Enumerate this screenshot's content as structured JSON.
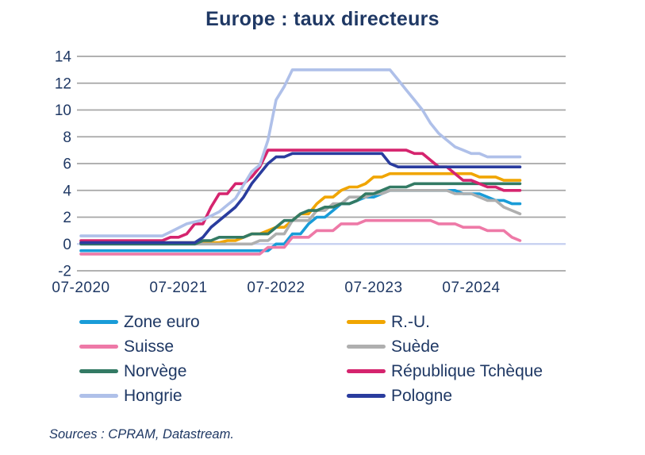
{
  "title": "Europe : taux directeurs",
  "source_note": "Sources : CPRAM, Datastream.",
  "colors": {
    "title_text": "#1F3864",
    "axis_text": "#1F3864",
    "legend_text": "#1F3864",
    "gridline": "#A6A6A6",
    "zero_axis_line": "#C5CFF0",
    "background": "#FFFFFF"
  },
  "chart_data": {
    "type": "line",
    "title": "Europe : taux directeurs",
    "xlabel": "",
    "ylabel": "",
    "ylim": [
      -2,
      14
    ],
    "y_ticks": [
      14,
      12,
      10,
      8,
      6,
      4,
      2,
      0,
      -2
    ],
    "grid": "horizontal-only",
    "legend_position": "bottom-two-columns",
    "x_unit": "monthly",
    "x_start": "2020-07",
    "x_end": "2025-01",
    "x_tick_labels": [
      "07-2020",
      "07-2021",
      "07-2022",
      "07-2023",
      "07-2024"
    ],
    "x_tick_month_index": [
      0,
      12,
      24,
      36,
      48
    ],
    "series": [
      {
        "id": "zone-euro",
        "name": "Zone euro",
        "color": "#199CD8",
        "values": [
          -0.5,
          -0.5,
          -0.5,
          -0.5,
          -0.5,
          -0.5,
          -0.5,
          -0.5,
          -0.5,
          -0.5,
          -0.5,
          -0.5,
          -0.5,
          -0.5,
          -0.5,
          -0.5,
          -0.5,
          -0.5,
          -0.5,
          -0.5,
          -0.5,
          -0.5,
          -0.5,
          -0.5,
          0,
          0,
          0.75,
          0.75,
          1.5,
          2,
          2,
          2.5,
          3,
          3,
          3.25,
          3.5,
          3.5,
          3.75,
          4,
          4,
          4,
          4,
          4,
          4,
          4,
          4,
          4,
          3.75,
          3.75,
          3.75,
          3.5,
          3.25,
          3.25,
          3,
          3
        ]
      },
      {
        "id": "r-u",
        "name": "R.-U.",
        "color": "#F0A500",
        "values": [
          0.1,
          0.1,
          0.1,
          0.1,
          0.1,
          0.1,
          0.1,
          0.1,
          0.1,
          0.1,
          0.1,
          0.1,
          0.1,
          0.1,
          0.1,
          0.1,
          0.1,
          0.1,
          0.25,
          0.25,
          0.5,
          0.75,
          0.75,
          1,
          1.25,
          1.25,
          1.75,
          2.25,
          2.25,
          3,
          3.5,
          3.5,
          4,
          4.25,
          4.25,
          4.5,
          5,
          5,
          5.25,
          5.25,
          5.25,
          5.25,
          5.25,
          5.25,
          5.25,
          5.25,
          5.25,
          5.25,
          5.25,
          5,
          5,
          5,
          4.75,
          4.75,
          4.75
        ]
      },
      {
        "id": "suisse",
        "name": "Suisse",
        "color": "#EE79A7",
        "values": [
          -0.75,
          -0.75,
          -0.75,
          -0.75,
          -0.75,
          -0.75,
          -0.75,
          -0.75,
          -0.75,
          -0.75,
          -0.75,
          -0.75,
          -0.75,
          -0.75,
          -0.75,
          -0.75,
          -0.75,
          -0.75,
          -0.75,
          -0.75,
          -0.75,
          -0.75,
          -0.75,
          -0.25,
          -0.25,
          -0.25,
          0.5,
          0.5,
          0.5,
          1,
          1,
          1,
          1.5,
          1.5,
          1.5,
          1.75,
          1.75,
          1.75,
          1.75,
          1.75,
          1.75,
          1.75,
          1.75,
          1.75,
          1.5,
          1.5,
          1.5,
          1.25,
          1.25,
          1.25,
          1,
          1,
          1,
          0.5,
          0.25
        ]
      },
      {
        "id": "suede",
        "name": "Suède",
        "color": "#AFAFAF",
        "values": [
          0,
          0,
          0,
          0,
          0,
          0,
          0,
          0,
          0,
          0,
          0,
          0,
          0,
          0,
          0,
          0,
          0,
          0,
          0,
          0,
          0,
          0,
          0.25,
          0.25,
          0.75,
          0.75,
          1.75,
          1.75,
          1.75,
          2.5,
          2.5,
          3,
          3,
          3.5,
          3.5,
          3.5,
          3.75,
          3.75,
          4,
          4,
          4,
          4,
          4,
          4,
          4,
          4,
          3.75,
          3.75,
          3.75,
          3.5,
          3.25,
          3.25,
          2.75,
          2.5,
          2.25
        ]
      },
      {
        "id": "norvege",
        "name": "Norvège",
        "color": "#337A64",
        "values": [
          0,
          0,
          0,
          0,
          0,
          0,
          0,
          0,
          0,
          0,
          0,
          0,
          0,
          0,
          0,
          0.25,
          0.25,
          0.5,
          0.5,
          0.5,
          0.5,
          0.75,
          0.75,
          0.75,
          1.25,
          1.75,
          1.75,
          2.25,
          2.5,
          2.5,
          2.75,
          2.75,
          3,
          3,
          3.25,
          3.75,
          3.75,
          4,
          4.25,
          4.25,
          4.25,
          4.5,
          4.5,
          4.5,
          4.5,
          4.5,
          4.5,
          4.5,
          4.5,
          4.5,
          4.5,
          4.5,
          4.5,
          4.5,
          4.5
        ]
      },
      {
        "id": "republique-tcheque",
        "name": "République Tchèque",
        "color": "#D5246E",
        "values": [
          0.25,
          0.25,
          0.25,
          0.25,
          0.25,
          0.25,
          0.25,
          0.25,
          0.25,
          0.25,
          0.25,
          0.5,
          0.5,
          0.75,
          1.5,
          1.5,
          2.75,
          3.75,
          3.75,
          4.5,
          4.5,
          5,
          5.75,
          7,
          7,
          7,
          7,
          7,
          7,
          7,
          7,
          7,
          7,
          7,
          7,
          7,
          7,
          7,
          7,
          7,
          7,
          6.75,
          6.75,
          6.25,
          5.75,
          5.75,
          5.25,
          4.75,
          4.75,
          4.5,
          4.25,
          4.25,
          4,
          4,
          4
        ]
      },
      {
        "id": "hongrie",
        "name": "Hongrie",
        "color": "#AFC0E9",
        "values": [
          0.6,
          0.6,
          0.6,
          0.6,
          0.6,
          0.6,
          0.6,
          0.6,
          0.6,
          0.6,
          0.6,
          0.9,
          1.2,
          1.5,
          1.65,
          1.8,
          2.1,
          2.4,
          2.9,
          3.4,
          4.4,
          5.4,
          5.9,
          7.75,
          10.75,
          11.75,
          13,
          13,
          13,
          13,
          13,
          13,
          13,
          13,
          13,
          13,
          13,
          13,
          13,
          12.25,
          11.5,
          10.75,
          10,
          9,
          8.25,
          7.75,
          7.25,
          7,
          6.75,
          6.75,
          6.5,
          6.5,
          6.5,
          6.5,
          6.5
        ]
      },
      {
        "id": "pologne",
        "name": "Pologne",
        "color": "#2A3C9E",
        "values": [
          0.1,
          0.1,
          0.1,
          0.1,
          0.1,
          0.1,
          0.1,
          0.1,
          0.1,
          0.1,
          0.1,
          0.1,
          0.1,
          0.1,
          0.1,
          0.5,
          1.25,
          1.75,
          2.25,
          2.75,
          3.5,
          4.5,
          5.25,
          6,
          6.5,
          6.5,
          6.75,
          6.75,
          6.75,
          6.75,
          6.75,
          6.75,
          6.75,
          6.75,
          6.75,
          6.75,
          6.75,
          6.75,
          6,
          5.75,
          5.75,
          5.75,
          5.75,
          5.75,
          5.75,
          5.75,
          5.75,
          5.75,
          5.75,
          5.75,
          5.75,
          5.75,
          5.75,
          5.75,
          5.75
        ]
      }
    ]
  }
}
